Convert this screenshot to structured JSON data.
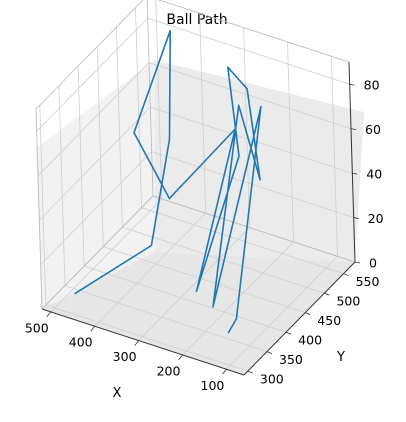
{
  "chart_data": {
    "type": "line",
    "projection": "3d",
    "title": "Ball Path",
    "xlabel": "X",
    "ylabel": "Y",
    "zlabel": "",
    "xlim": [
      60,
      520
    ],
    "ylim": [
      290,
      580
    ],
    "zlim": [
      0,
      90
    ],
    "xticks": [
      100,
      200,
      300,
      400,
      500
    ],
    "yticks": [
      300,
      350,
      400,
      450,
      500,
      550
    ],
    "zticks": [
      0,
      20,
      40,
      60,
      80
    ],
    "grid": true,
    "line_color": "#1f77b4",
    "pane_colors": [
      "#f2f2f2",
      "#ebebeb",
      "#e6e6e6"
    ],
    "points": [
      {
        "x": 120,
        "y": 320,
        "z": 10
      },
      {
        "x": 110,
        "y": 330,
        "z": 15
      },
      {
        "x": 175,
        "y": 480,
        "z": 80
      },
      {
        "x": 190,
        "y": 360,
        "z": 10
      },
      {
        "x": 235,
        "y": 490,
        "z": 75
      },
      {
        "x": 200,
        "y": 500,
        "z": 42
      },
      {
        "x": 260,
        "y": 540,
        "z": 72
      },
      {
        "x": 330,
        "y": 570,
        "z": 72
      },
      {
        "x": 265,
        "y": 520,
        "z": 45
      },
      {
        "x": 245,
        "y": 380,
        "z": 10
      },
      {
        "x": 290,
        "y": 540,
        "z": 52
      },
      {
        "x": 410,
        "y": 500,
        "z": 20
      },
      {
        "x": 505,
        "y": 520,
        "z": 40
      },
      {
        "x": 460,
        "y": 570,
        "z": 80
      },
      {
        "x": 460,
        "y": 560,
        "z": 33
      },
      {
        "x": 400,
        "y": 440,
        "z": 10
      },
      {
        "x": 470,
        "y": 320,
        "z": 5
      }
    ]
  }
}
